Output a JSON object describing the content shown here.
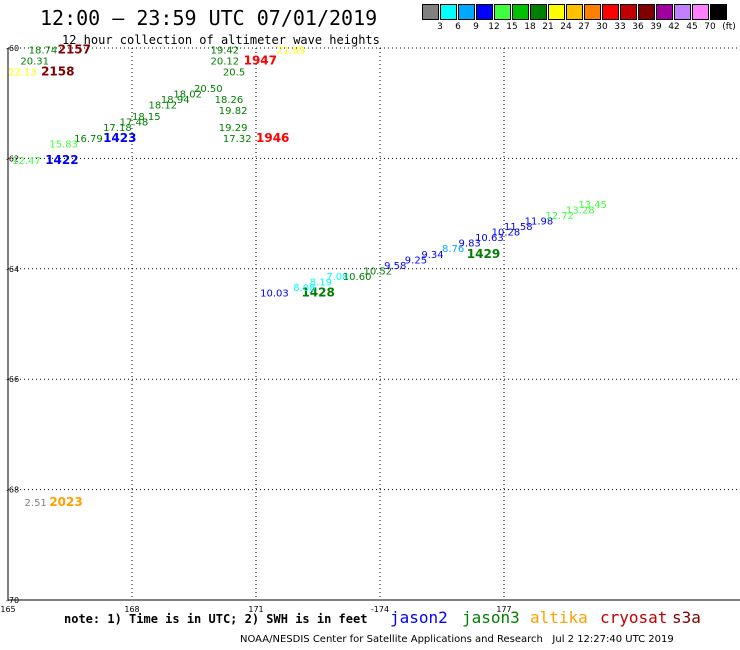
{
  "header": {
    "title": "12:00 — 23:59 UTC 07/01/2019",
    "subtitle": "12 hour collection of altimeter wave heights"
  },
  "legend": {
    "unit": "(ft)",
    "colors": [
      "#808080",
      "#00ffff",
      "#00a8ff",
      "#0000ff",
      "#40ff40",
      "#00c000",
      "#008000",
      "#ffff00",
      "#ffc000",
      "#ff8000",
      "#ff0000",
      "#c00000",
      "#800000",
      "#a000a0",
      "#c080ff",
      "#ff80ff",
      "#000000"
    ],
    "ticks": [
      "3",
      "6",
      "9",
      "12",
      "15",
      "18",
      "21",
      "24",
      "27",
      "30",
      "33",
      "36",
      "39",
      "42",
      "45",
      "70"
    ]
  },
  "axes": {
    "y_labels": [
      "-60",
      "-62",
      "-64",
      "-66",
      "-68",
      "-70"
    ],
    "x_labels": [
      "165",
      "168",
      "-174",
      "177"
    ],
    "x_labels_mid": [
      "171"
    ]
  },
  "labels": [
    {
      "text": "18.74",
      "c": "#008000",
      "lon": 165.5,
      "lat": -60.1
    },
    {
      "text": "2157",
      "c": "#800000",
      "lon": 166.2,
      "lat": -60.1,
      "b": true
    },
    {
      "text": "20.31",
      "c": "#008000",
      "lon": 165.3,
      "lat": -60.3
    },
    {
      "text": "22.13",
      "c": "#ffff00",
      "lon": 165.0,
      "lat": -60.5
    },
    {
      "text": "2158",
      "c": "#800000",
      "lon": 165.8,
      "lat": -60.5,
      "b": true
    },
    {
      "text": "19.42",
      "c": "#008000",
      "lon": 169.9,
      "lat": -60.1
    },
    {
      "text": "21.69",
      "c": "#ffff00",
      "lon": 171.5,
      "lat": -60.1
    },
    {
      "text": "20.12",
      "c": "#008000",
      "lon": 169.9,
      "lat": -60.3
    },
    {
      "text": "1947",
      "c": "#ff0000",
      "lon": 170.7,
      "lat": -60.3,
      "b": true
    },
    {
      "text": "20.5",
      "c": "#008000",
      "lon": 170.2,
      "lat": -60.5
    },
    {
      "text": "20.50",
      "c": "#008000",
      "lon": 169.5,
      "lat": -60.8
    },
    {
      "text": "18.26",
      "c": "#008000",
      "lon": 170.0,
      "lat": -61.0
    },
    {
      "text": "19.82",
      "c": "#008000",
      "lon": 170.1,
      "lat": -61.2
    },
    {
      "text": "19.29",
      "c": "#008000",
      "lon": 170.1,
      "lat": -61.5
    },
    {
      "text": "17.32",
      "c": "#008000",
      "lon": 170.2,
      "lat": -61.7
    },
    {
      "text": "1946",
      "c": "#ff0000",
      "lon": 171.0,
      "lat": -61.7,
      "b": true
    },
    {
      "text": "18.02",
      "c": "#008000",
      "lon": 169.0,
      "lat": -60.9
    },
    {
      "text": "18.94",
      "c": "#008000",
      "lon": 168.7,
      "lat": -61.0
    },
    {
      "text": "18.12",
      "c": "#008000",
      "lon": 168.4,
      "lat": -61.1
    },
    {
      "text": "18.15",
      "c": "#008000",
      "lon": 168.0,
      "lat": -61.3
    },
    {
      "text": "17.48",
      "c": "#008000",
      "lon": 167.7,
      "lat": -61.4
    },
    {
      "text": "17.18",
      "c": "#008000",
      "lon": 167.3,
      "lat": -61.5
    },
    {
      "text": "16.79",
      "c": "#008000",
      "lon": 166.6,
      "lat": -61.7
    },
    {
      "text": "1423",
      "c": "#0000ff",
      "lon": 167.3,
      "lat": -61.7,
      "b": true
    },
    {
      "text": "15.83",
      "c": "#40ff40",
      "lon": 166.0,
      "lat": -61.8
    },
    {
      "text": "12.47",
      "c": "#40ff40",
      "lon": 165.1,
      "lat": -62.1
    },
    {
      "text": "1422",
      "c": "#0000ff",
      "lon": 165.9,
      "lat": -62.1,
      "b": true
    },
    {
      "text": "10.03",
      "c": "#0000ff",
      "lon": 171.1,
      "lat": -64.5
    },
    {
      "text": "1428",
      "c": "#008000",
      "lon": 172.1,
      "lat": -64.5,
      "b": true
    },
    {
      "text": "8.08",
      "c": "#00ffff",
      "lon": 171.9,
      "lat": -64.4
    },
    {
      "text": "8.19",
      "c": "#00ffff",
      "lon": 172.3,
      "lat": -64.3
    },
    {
      "text": "7.08",
      "c": "#00ffff",
      "lon": 172.7,
      "lat": -64.2
    },
    {
      "text": "10.60",
      "c": "#008000",
      "lon": 173.1,
      "lat": -64.2
    },
    {
      "text": "10.52",
      "c": "#008000",
      "lon": 173.6,
      "lat": -64.1
    },
    {
      "text": "9.58",
      "c": "#0000ff",
      "lon": 174.1,
      "lat": -64.0
    },
    {
      "text": "9.25",
      "c": "#0000ff",
      "lon": 174.6,
      "lat": -63.9
    },
    {
      "text": "9.34",
      "c": "#0000ff",
      "lon": 175.0,
      "lat": -63.8
    },
    {
      "text": "8.76",
      "c": "#00a8ff",
      "lon": 175.5,
      "lat": -63.7
    },
    {
      "text": "9.83",
      "c": "#0000ff",
      "lon": 175.9,
      "lat": -63.6
    },
    {
      "text": "10.63",
      "c": "#0000ff",
      "lon": 176.3,
      "lat": -63.5
    },
    {
      "text": "1429",
      "c": "#008000",
      "lon": 176.1,
      "lat": -63.8,
      "b": true
    },
    {
      "text": "10.28",
      "c": "#0000ff",
      "lon": 176.7,
      "lat": -63.4
    },
    {
      "text": "11.58",
      "c": "#0000ff",
      "lon": 177.0,
      "lat": -63.3
    },
    {
      "text": "11.98",
      "c": "#0000ff",
      "lon": 177.5,
      "lat": -63.2
    },
    {
      "text": "12.72",
      "c": "#40ff40",
      "lon": 178.0,
      "lat": -63.1
    },
    {
      "text": "13.28",
      "c": "#40ff40",
      "lon": 178.5,
      "lat": -63.0
    },
    {
      "text": "13.45",
      "c": "#40ff40",
      "lon": 178.8,
      "lat": -62.9
    },
    {
      "text": "2.51",
      "c": "#808080",
      "lon": 165.4,
      "lat": -68.3
    },
    {
      "text": "2023",
      "c": "#ffa000",
      "lon": 166.0,
      "lat": -68.3,
      "b": true
    }
  ],
  "note": "note: 1) Time is in UTC; 2) SWH is in feet",
  "satellites": [
    {
      "name": "jason2",
      "c": "#0000ff"
    },
    {
      "name": "jason3",
      "c": "#008000"
    },
    {
      "name": "altika",
      "c": "#ffa000"
    },
    {
      "name": "cryosat",
      "c": "#c00000"
    },
    {
      "name": "s3a",
      "c": "#800000"
    }
  ],
  "footer": {
    "source": "NOAA/NESDIS Center for Satellite Applications and Research",
    "timestamp": "Jul  2 12:27:40 UTC 2019"
  }
}
